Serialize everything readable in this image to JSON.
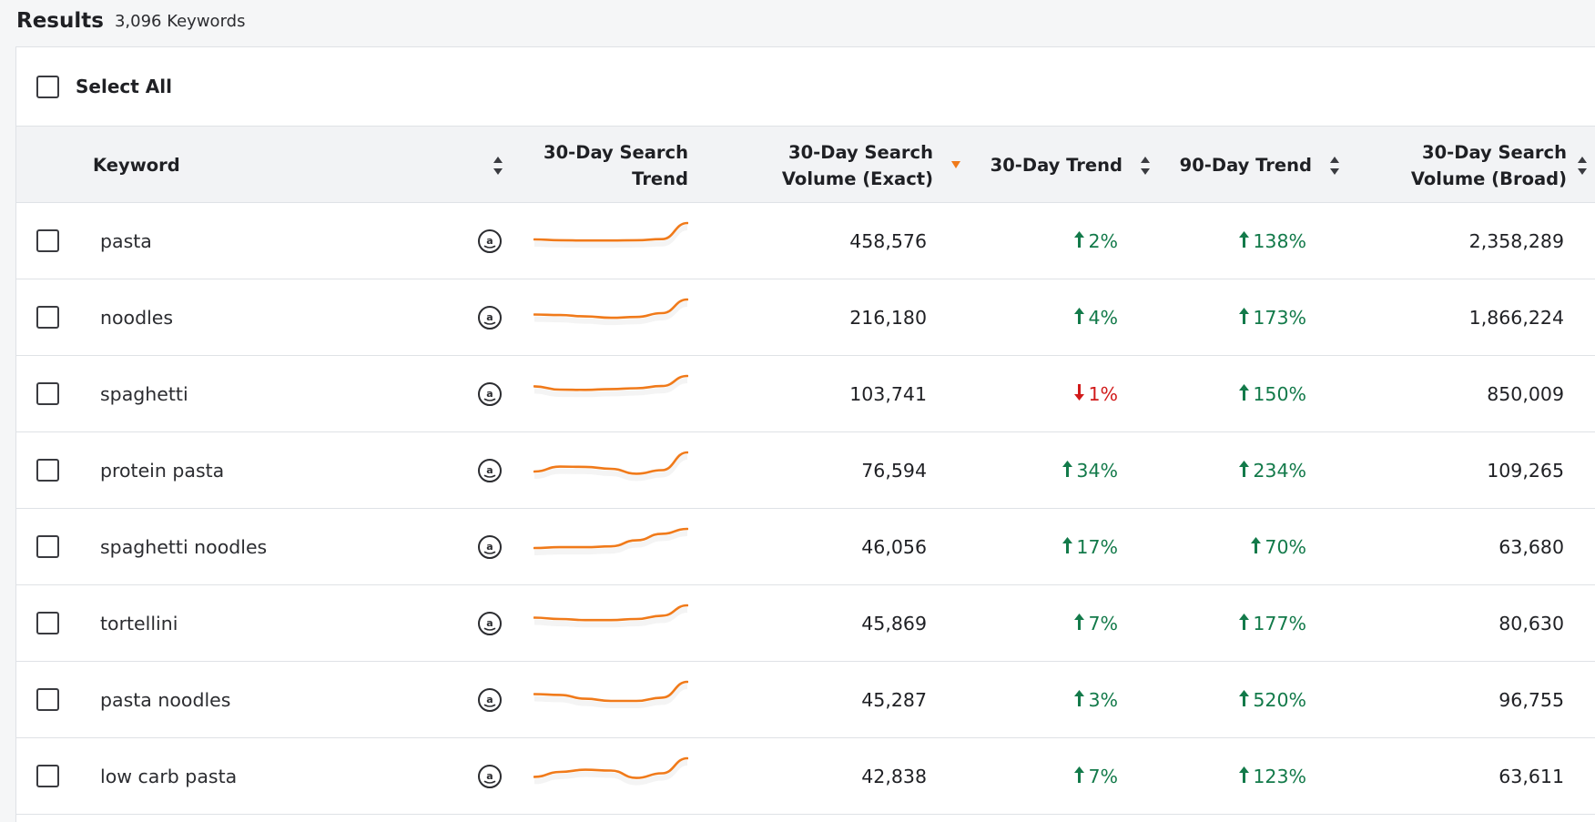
{
  "results": {
    "title": "Results",
    "count_label": "3,096 Keywords"
  },
  "select_all": {
    "label": "Select All"
  },
  "columns": {
    "keyword": "Keyword",
    "search_trend": [
      "30-Day Search",
      "Trend"
    ],
    "volume_exact": [
      "30-Day Search",
      "Volume (Exact)"
    ],
    "trend_30": "30-Day Trend",
    "trend_90": "90-Day Trend",
    "volume_broad": [
      "30-Day Search",
      "Volume (Broad)"
    ]
  },
  "colors": {
    "up": "#137a4a",
    "down": "#d11a1a",
    "sparkline": "#f07a1a",
    "sort_active": "#f07a1a"
  },
  "rows": [
    {
      "keyword": "pasta",
      "volume_exact": "458,576",
      "trend_30": "2%",
      "trend_30_dir": "up",
      "trend_90": "138%",
      "trend_90_dir": "up",
      "volume_broad": "2,358,289",
      "spark": [
        0.4,
        0.37,
        0.36,
        0.36,
        0.37,
        0.41,
        1.0
      ]
    },
    {
      "keyword": "noodles",
      "volume_exact": "216,180",
      "trend_30": "4%",
      "trend_30_dir": "up",
      "trend_90": "173%",
      "trend_90_dir": "up",
      "volume_broad": "1,866,224",
      "spark": [
        0.45,
        0.43,
        0.38,
        0.33,
        0.36,
        0.5,
        1.0
      ]
    },
    {
      "keyword": "spaghetti",
      "volume_exact": "103,741",
      "trend_30": "1%",
      "trend_30_dir": "down",
      "trend_90": "150%",
      "trend_90_dir": "up",
      "volume_broad": "850,009",
      "spark": [
        0.62,
        0.5,
        0.49,
        0.52,
        0.55,
        0.63,
        1.0
      ]
    },
    {
      "keyword": "protein pasta",
      "volume_exact": "76,594",
      "trend_30": "34%",
      "trend_30_dir": "up",
      "trend_90": "234%",
      "trend_90_dir": "up",
      "volume_broad": "109,265",
      "spark": [
        0.3,
        0.48,
        0.47,
        0.4,
        0.22,
        0.35,
        1.0
      ]
    },
    {
      "keyword": "spaghetti noodles",
      "volume_exact": "46,056",
      "trend_30": "17%",
      "trend_30_dir": "up",
      "trend_90": "70%",
      "trend_90_dir": "up",
      "volume_broad": "63,680",
      "spark": [
        0.3,
        0.33,
        0.33,
        0.36,
        0.58,
        0.82,
        1.0
      ]
    },
    {
      "keyword": "tortellini",
      "volume_exact": "45,869",
      "trend_30": "7%",
      "trend_30_dir": "up",
      "trend_90": "177%",
      "trend_90_dir": "up",
      "volume_broad": "80,630",
      "spark": [
        0.55,
        0.5,
        0.46,
        0.46,
        0.5,
        0.62,
        1.0
      ]
    },
    {
      "keyword": "pasta noodles",
      "volume_exact": "45,287",
      "trend_30": "3%",
      "trend_30_dir": "up",
      "trend_90": "520%",
      "trend_90_dir": "up",
      "volume_broad": "96,755",
      "spark": [
        0.55,
        0.52,
        0.38,
        0.3,
        0.3,
        0.42,
        1.0
      ]
    },
    {
      "keyword": "low carb pasta",
      "volume_exact": "42,838",
      "trend_30": "7%",
      "trend_30_dir": "up",
      "trend_90": "123%",
      "trend_90_dir": "up",
      "volume_broad": "63,611",
      "spark": [
        0.32,
        0.5,
        0.58,
        0.55,
        0.28,
        0.45,
        1.0
      ]
    }
  ]
}
